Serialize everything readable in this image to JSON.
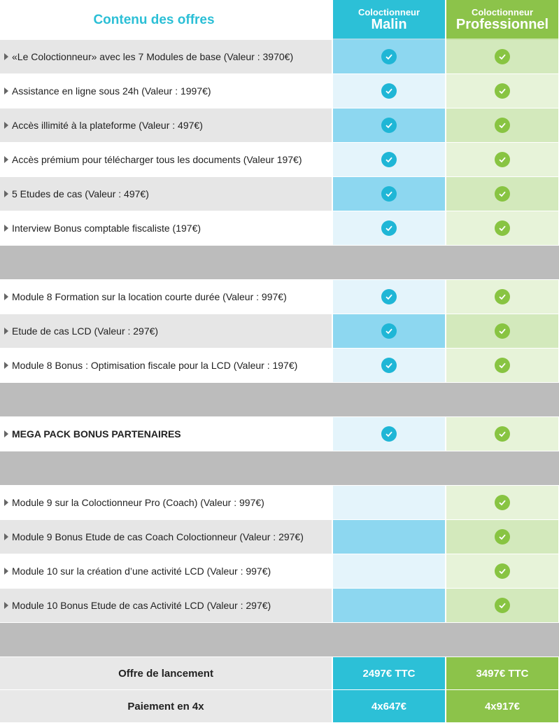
{
  "header": {
    "title": "Contenu des offres",
    "plan1_sub": "Coloctionneur",
    "plan1_name": "Malin",
    "plan2_sub": "Coloctionneur",
    "plan2_name": "Professionnel"
  },
  "items": [
    {
      "label": "«Le Coloctionneur» avec les 7 Modules de base (Valeur : 3970€)",
      "malin": true,
      "pro": true
    },
    {
      "label": "Assistance en ligne sous 24h (Valeur : 1997€)",
      "malin": true,
      "pro": true
    },
    {
      "label": "Accès illimité à la plateforme (Valeur : 497€)",
      "malin": true,
      "pro": true
    },
    {
      "label": "Accès prémium pour télécharger tous les documents (Valeur 197€)",
      "malin": true,
      "pro": true
    },
    {
      "label": "5 Etudes de cas (Valeur : 497€)",
      "malin": true,
      "pro": true
    },
    {
      "label": "Interview Bonus comptable fiscaliste (197€)",
      "malin": true,
      "pro": true
    },
    {
      "label": "Module 8 Formation sur la location courte durée (Valeur : 997€)",
      "malin": true,
      "pro": true
    },
    {
      "label": "Etude de cas LCD (Valeur : 297€)",
      "malin": true,
      "pro": true
    },
    {
      "label": "Module 8 Bonus : Optimisation fiscale pour la LCD (Valeur : 197€)",
      "malin": true,
      "pro": true
    },
    {
      "label": "MEGA PACK BONUS PARTENAIRES",
      "malin": true,
      "pro": true
    },
    {
      "label": "Module 9 sur la Coloctionneur Pro (Coach) (Valeur : 997€)",
      "malin": false,
      "pro": true
    },
    {
      "label": "Module 9 Bonus Etude de cas Coach Coloctionneur  (Valeur : 297€)",
      "malin": false,
      "pro": true
    },
    {
      "label": "Module 10 sur la création d’une activité LCD (Valeur : 997€)",
      "malin": false,
      "pro": true
    },
    {
      "label": "Module 10 Bonus Etude de cas Activité LCD (Valeur : 297€)",
      "malin": false,
      "pro": true
    }
  ],
  "pricing": {
    "launch_label": "Offre de lancement",
    "launch_malin": "2497€ TTC",
    "launch_pro": "3497€ TTC",
    "installment_label": "Paiement en 4x",
    "installment_malin": "4x647€",
    "installment_pro": "4x917€"
  },
  "colors": {
    "malin_accent": "#2cc0d7",
    "pro_accent": "#8cc34a",
    "title_color": "#2bbfd6",
    "separator": "#bcbcbc"
  },
  "icons": {
    "check": "check-circle-icon",
    "bullet": "triangle-right-icon"
  }
}
